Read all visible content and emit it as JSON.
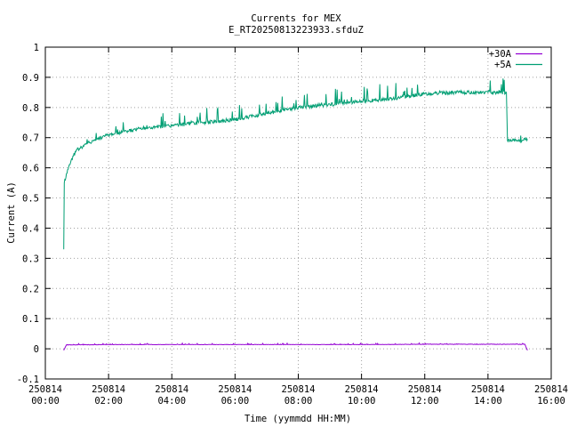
{
  "chart_data": {
    "type": "line",
    "title": "Currents for MEX",
    "subtitle": "E_RT20250813223933.sfduZ",
    "xlabel": "Time (yymmdd HH:MM)",
    "ylabel": "Current (A)",
    "xlim": [
      "250814 00:00",
      "250814 16:00"
    ],
    "ylim": [
      -0.1,
      1
    ],
    "x_ticks": [
      {
        "date": "250814",
        "time": "00:00"
      },
      {
        "date": "250814",
        "time": "02:00"
      },
      {
        "date": "250814",
        "time": "04:00"
      },
      {
        "date": "250814",
        "time": "06:00"
      },
      {
        "date": "250814",
        "time": "08:00"
      },
      {
        "date": "250814",
        "time": "10:00"
      },
      {
        "date": "250814",
        "time": "12:00"
      },
      {
        "date": "250814",
        "time": "14:00"
      },
      {
        "date": "250814",
        "time": "16:00"
      }
    ],
    "y_ticks": [
      "-0.1",
      "0",
      "0.1",
      "0.2",
      "0.3",
      "0.4",
      "0.5",
      "0.6",
      "0.7",
      "0.8",
      "0.9",
      "1"
    ],
    "grid": true,
    "legend_position": "top-right",
    "series": [
      {
        "name": "+30A",
        "color": "#9400d3",
        "x": [
          "250814 00:35",
          "250814 00:40",
          "250814 02:00",
          "250814 04:00",
          "250814 06:00",
          "250814 08:00",
          "250814 10:00",
          "250814 12:00",
          "250814 14:00",
          "250814 15:10",
          "250814 15:15"
        ],
        "y": [
          -0.005,
          0.013,
          0.014,
          0.014,
          0.014,
          0.014,
          0.014,
          0.015,
          0.015,
          0.015,
          -0.005
        ]
      },
      {
        "name": "+5A",
        "color": "#009e73",
        "x": [
          "250814 00:35",
          "250814 00:36",
          "250814 00:40",
          "250814 00:50",
          "250814 01:00",
          "250814 01:30",
          "250814 02:00",
          "250814 02:30",
          "250814 03:00",
          "250814 04:00",
          "250814 05:00",
          "250814 06:00",
          "250814 07:00",
          "250814 08:00",
          "250814 09:00",
          "250814 10:00",
          "250814 11:00",
          "250814 12:00",
          "250814 13:00",
          "250814 14:00",
          "250814 14:35",
          "250814 14:37",
          "250814 15:00",
          "250814 15:15"
        ],
        "y": [
          0.33,
          0.55,
          0.58,
          0.63,
          0.66,
          0.69,
          0.71,
          0.72,
          0.73,
          0.74,
          0.75,
          0.76,
          0.78,
          0.8,
          0.81,
          0.82,
          0.83,
          0.845,
          0.85,
          0.85,
          0.85,
          0.69,
          0.69,
          0.695
        ]
      }
    ]
  }
}
